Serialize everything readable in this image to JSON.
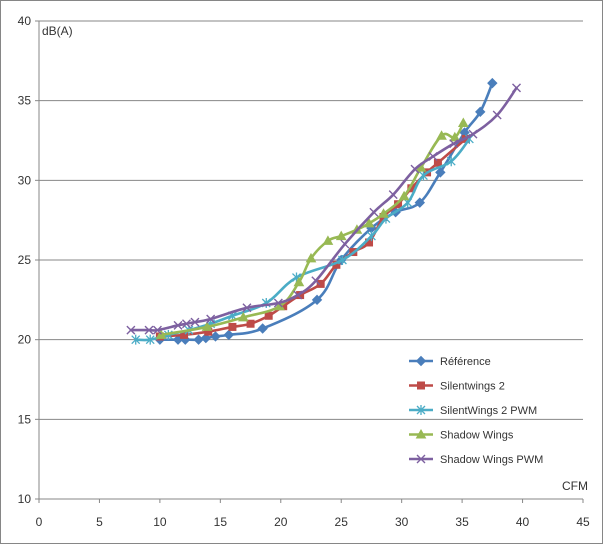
{
  "chart_data": {
    "type": "line",
    "title": "",
    "xlabel": "CFM",
    "ylabel": "dB(A)",
    "xlim": [
      0,
      45
    ],
    "ylim": [
      10,
      40
    ],
    "xticks": [
      "0",
      "5",
      "10",
      "15",
      "20",
      "25",
      "30",
      "35",
      "40",
      "45"
    ],
    "yticks": [
      "10",
      "15",
      "20",
      "25",
      "30",
      "35",
      "40"
    ],
    "grid": "horizontal",
    "legend_position": "bottom-right",
    "series": [
      {
        "name": "Référence",
        "color": "#4a7ebb",
        "marker": "diamond",
        "x": [
          10.0,
          11.5,
          12.1,
          13.2,
          13.8,
          14.6,
          15.7,
          18.5,
          23.0,
          25.0,
          27.5,
          29.5,
          31.5,
          33.2,
          35.2,
          36.5,
          37.5
        ],
        "y": [
          20.0,
          20.0,
          20.0,
          20.0,
          20.1,
          20.2,
          20.3,
          20.7,
          22.5,
          25.0,
          27.0,
          28.0,
          28.6,
          30.5,
          33.0,
          34.3,
          36.1
        ]
      },
      {
        "name": "Silentwings 2",
        "color": "#be4b48",
        "marker": "square",
        "x": [
          10.0,
          12.0,
          14.0,
          16.0,
          17.5,
          19.0,
          20.2,
          21.6,
          23.3,
          24.6,
          26.0,
          27.3,
          28.5,
          29.7,
          30.8,
          32.1,
          33.0,
          35.3
        ],
        "y": [
          20.2,
          20.3,
          20.5,
          20.8,
          21.0,
          21.5,
          22.1,
          22.8,
          23.5,
          24.7,
          25.5,
          26.1,
          27.7,
          28.5,
          29.5,
          30.5,
          31.1,
          32.6
        ]
      },
      {
        "name": "SilentWings 2 PWM",
        "color": "#4bacc6",
        "marker": "asterisk",
        "x": [
          8.0,
          9.2,
          10.7,
          12.4,
          14.2,
          16.0,
          18.8,
          21.3,
          25.1,
          27.5,
          28.7,
          30.5,
          31.8,
          34.1,
          35.6
        ],
        "y": [
          20.0,
          20.0,
          20.3,
          20.6,
          21.0,
          21.5,
          22.3,
          23.9,
          25.0,
          26.5,
          27.6,
          28.6,
          30.3,
          31.2,
          32.6
        ]
      },
      {
        "name": "Shadow Wings",
        "color": "#98b954",
        "marker": "triangle",
        "x": [
          10.1,
          13.9,
          16.9,
          19.9,
          21.5,
          22.5,
          23.9,
          25.0,
          26.3,
          27.3,
          28.5,
          30.2,
          31.6,
          33.3,
          34.4,
          35.1
        ],
        "y": [
          20.3,
          20.8,
          21.4,
          22.1,
          23.6,
          25.1,
          26.2,
          26.5,
          26.9,
          27.3,
          27.9,
          29.0,
          30.8,
          32.8,
          32.7,
          33.6
        ]
      },
      {
        "name": "Shadow Wings PWM",
        "color": "#7d60a0",
        "marker": "cross",
        "x": [
          7.6,
          9.1,
          9.8,
          11.5,
          12.2,
          12.9,
          14.2,
          17.2,
          19.8,
          21.4,
          22.9,
          25.3,
          27.7,
          29.3,
          31.1,
          32.6,
          34.3,
          35.9,
          37.9,
          39.5
        ],
        "y": [
          20.6,
          20.6,
          20.6,
          20.9,
          21.0,
          21.1,
          21.3,
          22.0,
          22.3,
          22.8,
          23.7,
          26.0,
          28.0,
          29.1,
          30.7,
          31.5,
          32.3,
          32.9,
          34.1,
          35.8
        ]
      }
    ]
  }
}
